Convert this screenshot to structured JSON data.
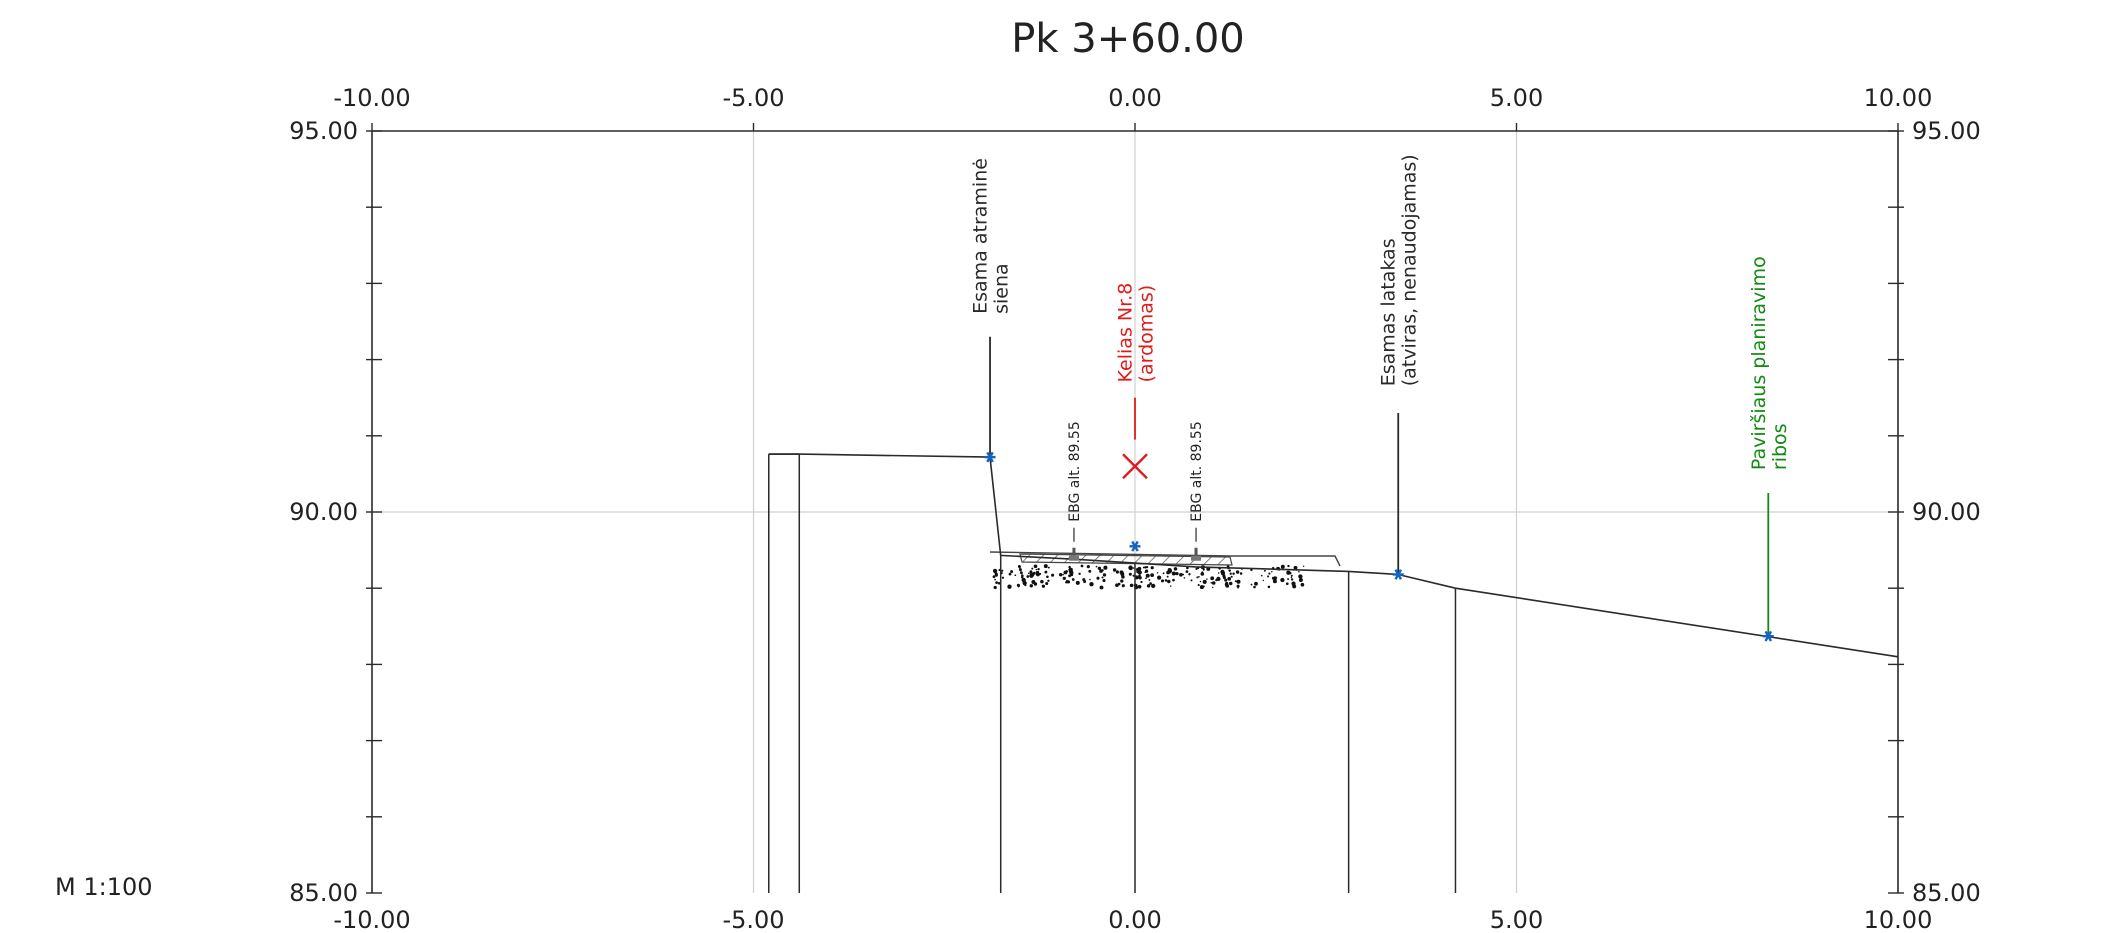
{
  "title": "Pk 3+60.00",
  "scale": "M 1:100",
  "colors": {
    "grid": "#d0d0d0",
    "line": "#2a2a2a",
    "point": "#1565c0",
    "red": "#e01b1b",
    "green": "#138a13"
  },
  "chart_data": {
    "type": "cross-section",
    "x_range": [
      -10,
      10
    ],
    "y_range": [
      85,
      95
    ],
    "x_ticks": [
      "-10.00",
      "-5.00",
      "0.00",
      "5.00",
      "10.00"
    ],
    "y_ticks": [
      "85.00",
      "90.00",
      "95.00"
    ],
    "ground_profile": [
      [
        -4.8,
        90.76
      ],
      [
        -4.4,
        90.76
      ],
      [
        -1.9,
        90.72
      ],
      [
        -1.76,
        89.43
      ],
      [
        -0.8,
        89.38
      ],
      [
        0.0,
        89.33
      ],
      [
        0.8,
        89.28
      ],
      [
        2.8,
        89.22
      ],
      [
        3.45,
        89.18
      ],
      [
        4.2,
        89.0
      ],
      [
        10.0,
        88.1
      ]
    ],
    "vertical_lines": [
      {
        "x": -4.8,
        "y_top": 90.76
      },
      {
        "x": -4.4,
        "y_top": 90.76
      },
      {
        "x": -1.76,
        "y_top": 89.43
      },
      {
        "x": 0.0,
        "y_top": 89.33
      },
      {
        "x": 2.8,
        "y_top": 89.22
      },
      {
        "x": 4.2,
        "y_top": 89.0
      }
    ],
    "points": [
      {
        "x": -1.9,
        "y": 90.72
      },
      {
        "x": 0.0,
        "y": 89.55
      },
      {
        "x": 3.45,
        "y": 89.18
      },
      {
        "x": 8.3,
        "y": 88.37
      }
    ],
    "annotations": [
      {
        "id": "retaining-wall",
        "lines": [
          "Esama atraminė",
          "siena"
        ],
        "x": -1.9,
        "y_text_bottom": 92.6,
        "leader_top": 92.3,
        "leader_bottom": 90.72,
        "color": "line"
      },
      {
        "id": "road",
        "lines": [
          "Kelias Nr.8",
          "(ardomas)"
        ],
        "x": 0.0,
        "y_text_bottom": 91.7,
        "leader_top": 91.5,
        "leader_bottom": 90.95,
        "color": "red"
      },
      {
        "id": "channel",
        "lines": [
          "Esamas latakas",
          "(atviras, nenaudojamas)"
        ],
        "x": 3.45,
        "y_text_bottom": 91.65,
        "leader_top": 91.3,
        "leader_bottom": 89.18,
        "color": "line"
      },
      {
        "id": "surface-limits",
        "lines": [
          "Paviršiaus planiravimo",
          "ribos"
        ],
        "x": 8.3,
        "y_text_bottom": 90.55,
        "leader_top": 90.25,
        "leader_bottom": 88.37,
        "color": "green"
      }
    ],
    "ebg_labels": [
      {
        "text": "EBG alt. 89.55",
        "x": -0.8
      },
      {
        "text": "EBG alt. 89.55",
        "x": 0.8
      }
    ]
  }
}
